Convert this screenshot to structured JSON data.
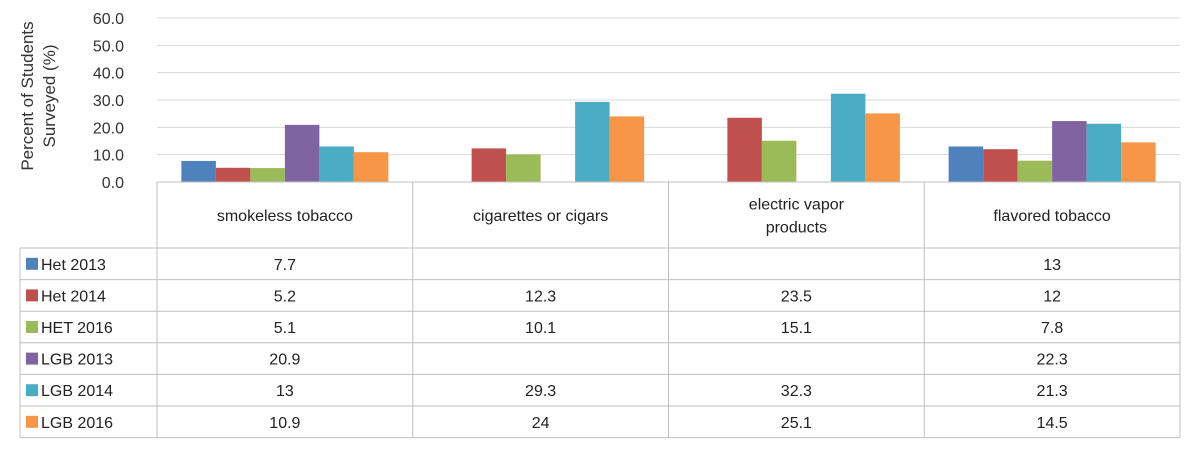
{
  "chart_data": {
    "type": "bar",
    "ylabel": [
      "Percent of Students",
      "Surveyed (%)"
    ],
    "ylim": [
      0,
      60
    ],
    "yticks": [
      "0.0",
      "10.0",
      "20.0",
      "30.0",
      "40.0",
      "50.0",
      "60.0"
    ],
    "categories": [
      [
        "smokeless tobacco"
      ],
      [
        "cigarettes or cigars"
      ],
      [
        "electric vapor",
        "products"
      ],
      [
        "flavored tobacco"
      ]
    ],
    "grid": true,
    "legend": "data-table",
    "series": [
      {
        "name": "Het 2013",
        "color": "#4f81bd",
        "values": [
          7.7,
          null,
          null,
          13
        ]
      },
      {
        "name": "Het 2014",
        "color": "#c0504d",
        "values": [
          5.2,
          12.3,
          23.5,
          12
        ]
      },
      {
        "name": "HET 2016",
        "color": "#9bbb59",
        "values": [
          5.1,
          10.1,
          15.1,
          7.8
        ]
      },
      {
        "name": "LGB 2013",
        "color": "#8064a2",
        "values": [
          20.9,
          null,
          null,
          22.3
        ]
      },
      {
        "name": "LGB 2014",
        "color": "#4bacc6",
        "values": [
          13,
          29.3,
          32.3,
          21.3
        ]
      },
      {
        "name": "LGB 2016",
        "color": "#f79646",
        "values": [
          10.9,
          24,
          25.1,
          14.5
        ]
      }
    ]
  }
}
